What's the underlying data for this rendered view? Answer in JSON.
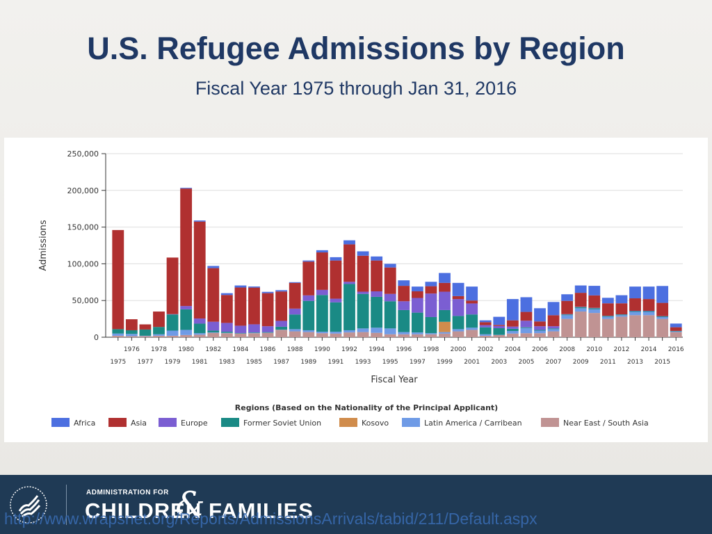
{
  "slide": {
    "title": "U.S. Refugee Admissions by Region",
    "subtitle": "Fiscal Year 1975 through Jan 31, 2016"
  },
  "footer": {
    "logo_small_text": "ADMINISTRATION FOR",
    "logo_children": "CHILDREN",
    "logo_amp": "&",
    "logo_families": "FAMILIES",
    "source_url": "http://www.wrapsnet.org/Reports/AdmissionsArrivals/tabid/211/Default.aspx"
  },
  "chart_data": {
    "type": "bar",
    "stacked": true,
    "xlabel": "Fiscal Year",
    "ylabel": "Admissions",
    "ylim": [
      0,
      250000
    ],
    "yticks": [
      0,
      50000,
      100000,
      150000,
      200000,
      250000
    ],
    "ytick_labels": [
      "0",
      "50,000",
      "100,000",
      "150,000",
      "200,000",
      "250,000"
    ],
    "legend_title": "Regions (Based on the Nationality of the Principal Applicant)",
    "legend_position": "bottom",
    "categories": [
      "1975",
      "1976",
      "1977",
      "1978",
      "1979",
      "1980",
      "1981",
      "1982",
      "1983",
      "1984",
      "1985",
      "1986",
      "1987",
      "1988",
      "1989",
      "1990",
      "1991",
      "1992",
      "1993",
      "1994",
      "1995",
      "1996",
      "1997",
      "1998",
      "1999",
      "2000",
      "2001",
      "2002",
      "2003",
      "2004",
      "2005",
      "2006",
      "2007",
      "2008",
      "2009",
      "2010",
      "2011",
      "2012",
      "2013",
      "2014",
      "2015",
      "2016"
    ],
    "series": [
      {
        "name": "Near East / South Asia",
        "color": "#c09393",
        "values": [
          2000,
          1500,
          1500,
          2000,
          2000,
          3000,
          3500,
          6000,
          5500,
          5000,
          5500,
          6000,
          10000,
          8000,
          7000,
          5500,
          5000,
          6500,
          7000,
          6000,
          4000,
          4000,
          4000,
          4000,
          5000,
          8000,
          10000,
          2000,
          3000,
          5000,
          5500,
          5500,
          8000,
          25000,
          35000,
          33000,
          25000,
          28000,
          30000,
          30000,
          25000,
          7000
        ]
      },
      {
        "name": "Latin America / Carribean",
        "color": "#6f9be6",
        "values": [
          3000,
          3000,
          500,
          2000,
          7000,
          7000,
          2000,
          600,
          500,
          200,
          500,
          200,
          300,
          3000,
          2500,
          2000,
          2500,
          3000,
          5000,
          7000,
          8000,
          3000,
          2500,
          1500,
          2000,
          3000,
          3000,
          2000,
          300,
          3500,
          7000,
          3500,
          3000,
          5000,
          4500,
          5000,
          3000,
          2000,
          4500,
          4500,
          2500,
          1000
        ]
      },
      {
        "name": "Kosovo",
        "color": "#d08c4c",
        "values": [
          0,
          0,
          0,
          0,
          0,
          0,
          0,
          0,
          0,
          0,
          0,
          0,
          0,
          0,
          0,
          0,
          0,
          0,
          0,
          0,
          0,
          0,
          0,
          0,
          14000,
          0,
          0,
          0,
          0,
          0,
          0,
          0,
          0,
          0,
          0,
          0,
          0,
          0,
          0,
          0,
          0,
          0
        ]
      },
      {
        "name": "Former Soviet Union",
        "color": "#1a8a85",
        "values": [
          6000,
          5000,
          8500,
          10000,
          22000,
          28000,
          13000,
          2500,
          1500,
          500,
          600,
          800,
          4000,
          20000,
          40000,
          50000,
          40000,
          63000,
          47000,
          42000,
          37000,
          30000,
          27000,
          22000,
          16000,
          18000,
          18000,
          9500,
          9000,
          3000,
          1000,
          1000,
          1000,
          1000,
          1500,
          1500,
          1000,
          1000,
          1000,
          1000,
          1000,
          500
        ]
      },
      {
        "name": "Europe",
        "color": "#7b5ed2",
        "values": [
          0,
          0,
          0,
          0,
          500,
          4500,
          7000,
          12000,
          12000,
          10000,
          11000,
          8000,
          8000,
          8000,
          7500,
          7000,
          5000,
          3000,
          3000,
          7500,
          10000,
          12000,
          20000,
          32000,
          25000,
          23000,
          15000,
          3000,
          3000,
          3000,
          9000,
          5000,
          3000,
          500,
          500,
          500,
          200,
          200,
          500,
          500,
          300,
          100
        ]
      },
      {
        "name": "Asia",
        "color": "#b03030",
        "values": [
          135000,
          15000,
          7000,
          21000,
          77000,
          160000,
          132000,
          73000,
          38000,
          52000,
          50000,
          45000,
          40000,
          35000,
          46000,
          51000,
          52000,
          51000,
          49000,
          42000,
          36000,
          21000,
          9000,
          10000,
          12000,
          4000,
          4000,
          4000,
          1500,
          8500,
          12000,
          6500,
          15000,
          18000,
          19000,
          17000,
          17000,
          15000,
          17000,
          16000,
          18000,
          5000
        ]
      },
      {
        "name": "Africa",
        "color": "#4c6fe0",
        "values": [
          0,
          0,
          0,
          0,
          0,
          1000,
          1500,
          3000,
          2500,
          2800,
          1500,
          1800,
          1800,
          1000,
          1500,
          3000,
          4500,
          5500,
          6000,
          5500,
          5000,
          7500,
          6500,
          6000,
          13500,
          18000,
          19000,
          2500,
          11000,
          29000,
          20000,
          18000,
          18000,
          9000,
          10000,
          13000,
          7500,
          11000,
          16000,
          17000,
          23000,
          5000
        ]
      }
    ]
  }
}
